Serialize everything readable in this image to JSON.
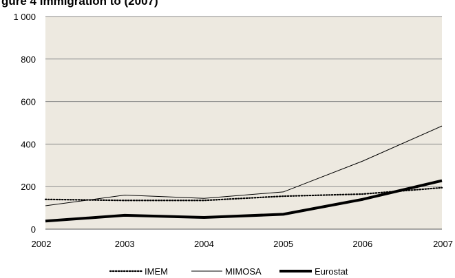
{
  "chart_data": {
    "type": "line",
    "title": "gure 4 Immigration to (2007)",
    "x": [
      2002,
      2003,
      2004,
      2005,
      2006,
      2007
    ],
    "x_tick_labels": [
      "2002",
      "2003",
      "2004",
      "2005",
      "2006",
      "2007"
    ],
    "ylim": [
      0,
      1000
    ],
    "y_ticks": [
      0,
      200,
      400,
      600,
      800,
      1000
    ],
    "y_tick_labels": [
      "0",
      "200",
      "400",
      "600",
      "800",
      "1 000"
    ],
    "grid": "horizontal",
    "legend_position": "bottom",
    "plot_background": "#ede9e0",
    "series": [
      {
        "name": "IMEM",
        "style": "dotted",
        "values": [
          140,
          135,
          135,
          155,
          165,
          195
        ]
      },
      {
        "name": "MIMOSA",
        "style": "thin",
        "values": [
          110,
          160,
          145,
          175,
          320,
          485
        ]
      },
      {
        "name": "Eurostat",
        "style": "thick",
        "values": [
          38,
          65,
          55,
          70,
          140,
          228
        ]
      }
    ]
  }
}
